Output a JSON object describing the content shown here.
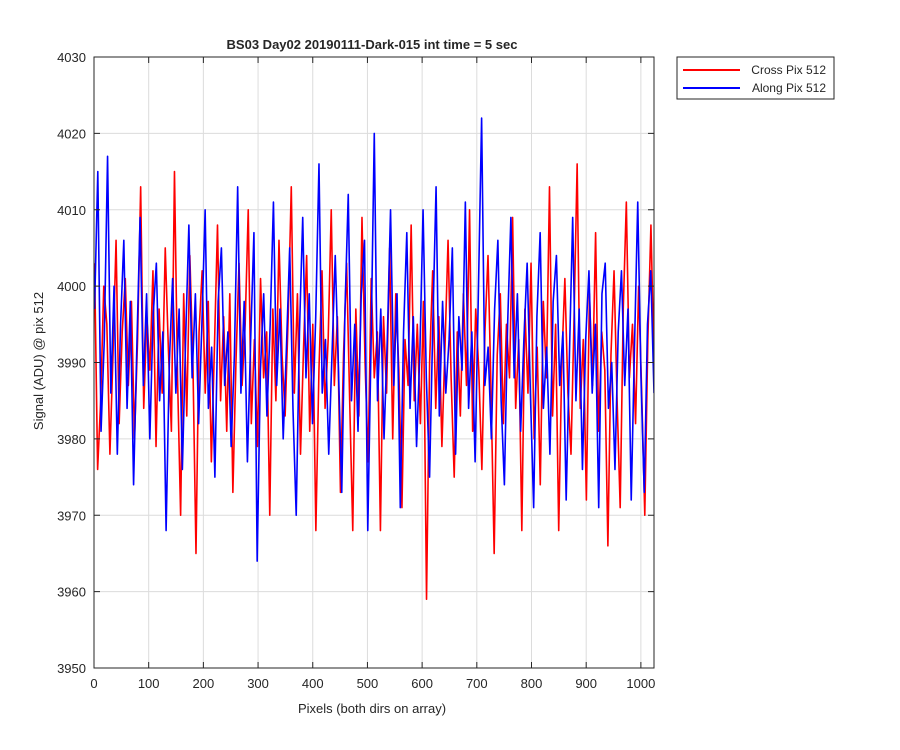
{
  "chart_data": {
    "type": "line",
    "title": "BS03 Day02 20190111-Dark-015 int time = 5 sec",
    "xlabel": "Pixels (both dirs on array)",
    "ylabel": "Signal (ADU) @ pix 512",
    "xlim": [
      0,
      1024
    ],
    "ylim": [
      3950,
      4030
    ],
    "xticks": [
      0,
      100,
      200,
      300,
      400,
      500,
      600,
      700,
      800,
      900,
      1000
    ],
    "yticks": [
      3950,
      3960,
      3970,
      3980,
      3990,
      4000,
      4010,
      4020,
      4030
    ],
    "grid": true,
    "legend_position": "outside-top-right",
    "x_start": 1,
    "x_end": 1024,
    "series": [
      {
        "name": "Cross Pix 512",
        "color": "#ff0000",
        "mean": 3990,
        "values": [
          4003,
          3976,
          3985,
          4000,
          3995,
          3978,
          3991,
          4006,
          3982,
          3994,
          4001,
          3987,
          3998,
          3980,
          3993,
          4013,
          3984,
          3996,
          3989,
          4002,
          3979,
          3997,
          3986,
          4005,
          3992,
          3981,
          4015,
          3988,
          3970,
          3999,
          3983,
          4004,
          3990,
          3965,
          3994,
          4002,
          3986,
          3998,
          3977,
          3992,
          4008,
          3985,
          3996,
          3981,
          3999,
          3973,
          3990,
          4003,
          3987,
          3995,
          4010,
          3982,
          3993,
          3979,
          4001,
          3988,
          3994,
          3970,
          3997,
          3985,
          4006,
          3991,
          3983,
          3996,
          4013,
          3986,
          3999,
          3978,
          3992,
          4004,
          3981,
          3995,
          3968,
          3989,
          4002,
          3984,
          3993,
          4010,
          3987,
          3996,
          3973,
          3991,
          4003,
          3985,
          3968,
          3997,
          3983,
          4009,
          3990,
          3977,
          4001,
          3988,
          3994,
          3968,
          3996,
          3986,
          4005,
          3980,
          3999,
          3989,
          3971,
          3993,
          3987,
          4008,
          3985,
          3995,
          3982,
          3998,
          3959,
          3990,
          4002,
          3984,
          3996,
          3979,
          3992,
          4006,
          3988,
          3975,
          3994,
          3983,
          3999,
          3987,
          4010,
          3981,
          3997,
          3989,
          3976,
          3994,
          4004,
          3986,
          3965,
          3991,
          3999,
          3982,
          3995,
          3988,
          4009,
          3984,
          3993,
          3968,
          3997,
          3986,
          4003,
          3980,
          3992,
          3974,
          3998,
          3988,
          4013,
          3983,
          3995,
          3968,
          3990,
          4001,
          3986,
          3978,
          3996,
          4016,
          3984,
          3993,
          3972,
          3999,
          3987,
          4007,
          3981,
          3994,
          3989,
          3966,
          3991,
          4002,
          3985,
          3971,
          3997,
          4011,
          3988,
          3995,
          3982,
          4000,
          3986,
          3970,
          3993,
          4008,
          3990
        ]
      },
      {
        "name": "Along Pix 512",
        "color": "#0000ff",
        "mean": 3991,
        "values": [
          3997,
          4015,
          3981,
          3993,
          4017,
          3986,
          4000,
          3978,
          3995,
          4006,
          3984,
          3998,
          3974,
          3992,
          4009,
          3987,
          3999,
          3980,
          3996,
          4003,
          3985,
          3994,
          3968,
          3990,
          4001,
          3986,
          3997,
          3976,
          3993,
          4008,
          3988,
          3999,
          3982,
          3995,
          4010,
          3984,
          3992,
          3975,
          3998,
          4005,
          3987,
          3994,
          3979,
          3991,
          4013,
          3986,
          3998,
          3977,
          3993,
          4007,
          3964,
          3989,
          3999,
          3983,
          3995,
          4011,
          3987,
          3997,
          3980,
          3992,
          4005,
          3984,
          3970,
          3994,
          4009,
          3988,
          3999,
          3982,
          3996,
          4016,
          3986,
          3993,
          3978,
          3991,
          4004,
          3989,
          3973,
          3997,
          4012,
          3985,
          3995,
          3981,
          3999,
          4006,
          3968,
          3992,
          4020,
          3985,
          3997,
          3980,
          3993,
          4010,
          3987,
          3999,
          3971,
          3994,
          4007,
          3984,
          3996,
          3979,
          3991,
          4010,
          3988,
          3975,
          3995,
          4013,
          3983,
          3998,
          3986,
          3993,
          4005,
          3978,
          3996,
          3989,
          4011,
          3984,
          3994,
          3977,
          3999,
          4022,
          3987,
          3992,
          3980,
          3997,
          4006,
          3985,
          3974,
          3995,
          4009,
          3988,
          3999,
          3981,
          3993,
          4003,
          3986,
          3971,
          3996,
          4007,
          3984,
          3992,
          3978,
          3998,
          4004,
          3987,
          3994,
          3972,
          3991,
          4009,
          3985,
          3997,
          3976,
          3993,
          4002,
          3986,
          3995,
          3971,
          3999,
          4003,
          3984,
          3990,
          3976,
          3994,
          4002,
          3987,
          3997,
          3972,
          3992,
          4011,
          3988,
          3973,
          3995,
          4002,
          3986
        ]
      }
    ]
  }
}
